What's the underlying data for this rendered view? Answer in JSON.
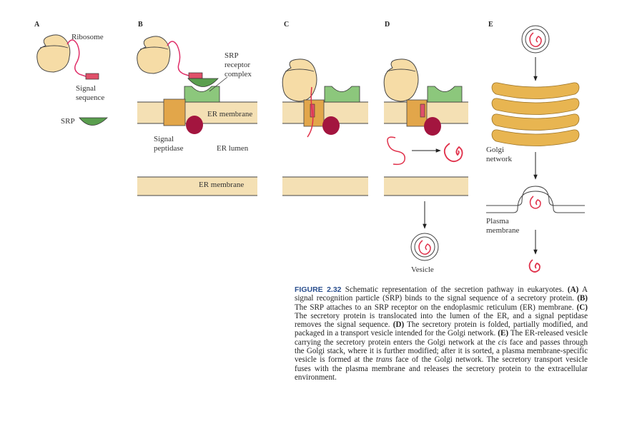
{
  "panels": {
    "a": {
      "letter": "A",
      "ribosome": "Ribosome",
      "signal_sequence_1": "Signal",
      "signal_sequence_2": "sequence",
      "srp": "SRP"
    },
    "b": {
      "letter": "B",
      "srp_receptor_1": "SRP",
      "srp_receptor_2": "receptor",
      "srp_receptor_3": "complex",
      "er_membrane": "ER membrane",
      "signal_peptidase_1": "Signal",
      "signal_peptidase_2": "peptidase",
      "er_lumen": "ER lumen",
      "er_membrane_bottom": "ER membrane"
    },
    "c": {
      "letter": "C"
    },
    "d": {
      "letter": "D",
      "vesicle": "Vesicle"
    },
    "e": {
      "letter": "E",
      "golgi_1": "Golgi",
      "golgi_2": "network",
      "plasma_1": "Plasma",
      "plasma_2": "membrane"
    }
  },
  "colors": {
    "ribosome": "#f6dca6",
    "membrane": "#f4e0b4",
    "membrane_line": "#444444",
    "translocon": "#e2a64a",
    "srp": "#5a9e4e",
    "receptor": "#8cc77c",
    "peptidase": "#a3153f",
    "signal": "#e0506a",
    "protein": "#e0304a",
    "golgi": "#e8b551",
    "arrow": "#222222",
    "caption_heading": "#2b4f8e"
  },
  "icons": [
    "ribosome-icon",
    "srp-icon",
    "srp-receptor-icon",
    "translocon-icon",
    "signal-peptidase-icon",
    "vesicle-icon",
    "golgi-icon",
    "protein-icon",
    "arrow-down-icon"
  ],
  "caption": {
    "figure_number": "FIGURE 2.32",
    "intro": " Schematic representation of the secretion pathway in eukaryotes. ",
    "a_tag": "(A)",
    "a_text": " A signal recognition particle (SRP) binds to the signal sequence of a secretory protein. ",
    "b_tag": "(B)",
    "b_text": " The SRP attaches to an SRP receptor on the endoplasmic reticulum (ER) membrane. ",
    "c_tag": "(C)",
    "c_text": " The secretory protein is translocated into the lumen of the ER, and a signal peptidase removes the signal sequence. ",
    "d_tag": "(D)",
    "d_text": " The secretory protein is folded, partially modified, and packaged in a transport vesicle intended for the Golgi network. ",
    "e_tag": "(E)",
    "e_text_1": " The ER-released vesicle carrying the secretory protein enters the Golgi network at the ",
    "cis": "cis",
    "e_text_2": " face and passes through the Golgi stack, where it is further modified; after it is sorted, a plasma membrane-specific vesicle is formed at the ",
    "trans": "trans",
    "e_text_3": " face of the Golgi network. The secretory transport vesicle fuses with the plasma membrane and releases the secretory protein to the extracellular environment."
  }
}
